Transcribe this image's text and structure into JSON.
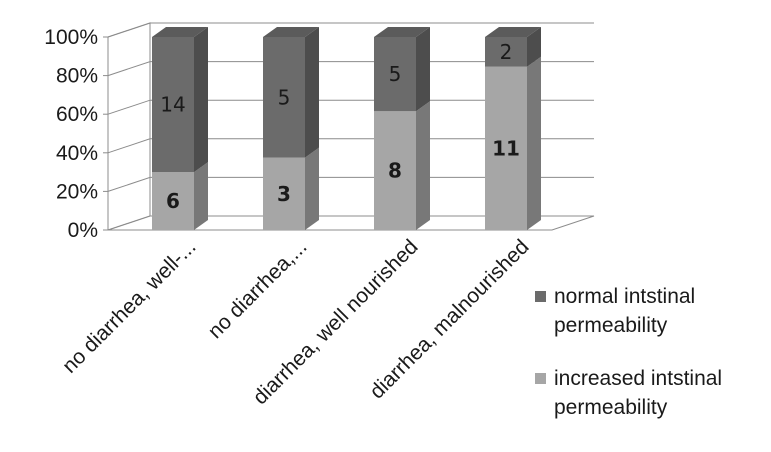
{
  "chart_data": {
    "type": "bar",
    "stacked": "percent",
    "three_d": true,
    "categories": [
      "no diarrhea, well-...",
      "no diarrhea,...",
      "diarrhea, well nourished",
      "diarrhea, malnourished"
    ],
    "series": [
      {
        "name": "increased intstinal permeability",
        "values": [
          6,
          3,
          8,
          11
        ],
        "color": "#a6a6a6",
        "label_weight": "bold"
      },
      {
        "name": "normal intstinal permeability",
        "values": [
          14,
          5,
          5,
          2
        ],
        "color": "#6b6b6b",
        "label_weight": "normal"
      }
    ],
    "y_ticks": [
      "0%",
      "20%",
      "40%",
      "60%",
      "80%",
      "100%"
    ],
    "ylim": [
      0,
      100
    ],
    "y_unit": "percent",
    "grid": true,
    "legend_position": "right",
    "title": "",
    "xlabel": "",
    "ylabel": ""
  }
}
